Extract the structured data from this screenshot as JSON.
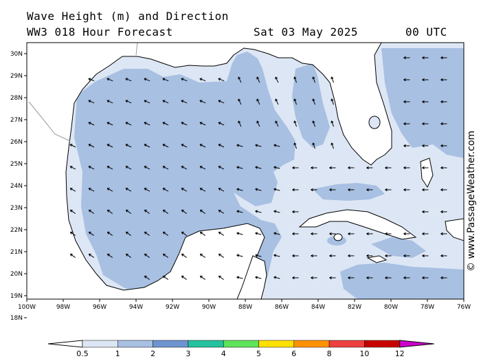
{
  "header": {
    "title": "Wave Height (m) and Direction",
    "forecast": "WW3 018 Hour Forecast",
    "date": "Sat 03 May 2025",
    "time": "00 UTC"
  },
  "axes": {
    "lat_labels": [
      "30N",
      "29N",
      "28N",
      "27N",
      "26N",
      "25N",
      "24N",
      "23N",
      "22N",
      "21N",
      "20N",
      "19N",
      "18N"
    ],
    "lon_labels": [
      "100W",
      "98W",
      "96W",
      "94W",
      "92W",
      "90W",
      "88W",
      "86W",
      "84W",
      "82W",
      "80W",
      "78W",
      "76W"
    ]
  },
  "copyright": "© www.PassageWeather.com",
  "legend": {
    "labels": [
      "0.5",
      "1",
      "2",
      "3",
      "4",
      "5",
      "6",
      "8",
      "10",
      "12"
    ],
    "colors": [
      "#dde6f4",
      "#a8c0e2",
      "#6e95d0",
      "#25c29e",
      "#5ee35a",
      "#ffe000",
      "#ff9200",
      "#ee4040",
      "#c80000",
      "#cc00cc"
    ]
  },
  "colors": {
    "land": "#ffffff",
    "wave_low": "#dde6f4",
    "wave_mid": "#a8c0e2",
    "coast": "#000000"
  }
}
